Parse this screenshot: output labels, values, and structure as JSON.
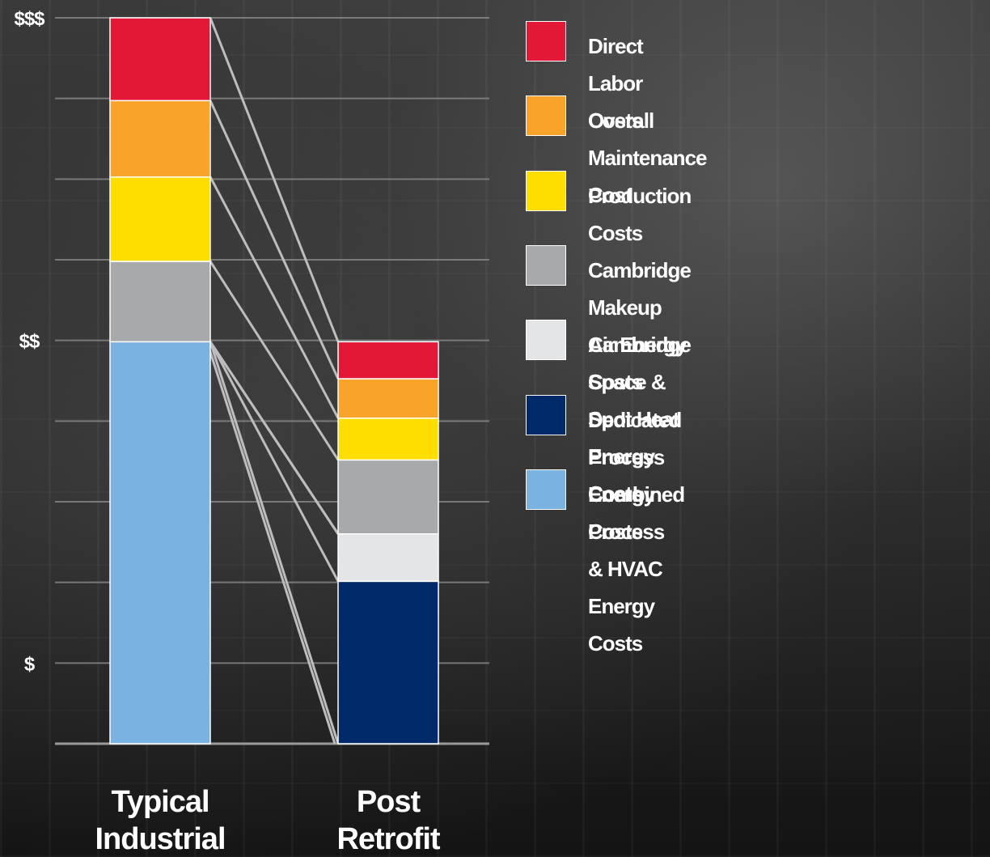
{
  "chart_data": {
    "type": "bar",
    "stacked": true,
    "categories": [
      "Typical\nIndustrial",
      "Post\nRetrofit"
    ],
    "y_tick_labels": [
      "$",
      "$$",
      "$$$"
    ],
    "series": [
      {
        "name": "Combined Process\n& HVAC Energy Costs",
        "color": "#7ab2e2",
        "values": [
          50,
          0
        ]
      },
      {
        "name": "Dedicated Process Energy Costs",
        "color": "#002a6a",
        "values": [
          0,
          20.2
        ]
      },
      {
        "name": "Cambridge Space & Spot Heat Energy Costs",
        "color": "#e4e5e7",
        "values": [
          0,
          5.9
        ]
      },
      {
        "name": "Cambridge Makeup Air Energy Costs",
        "color": "#a8a9ab",
        "values": [
          10,
          9.2
        ]
      },
      {
        "name": "Production Costs",
        "color": "#fedd00",
        "values": [
          10.5,
          5.2
        ]
      },
      {
        "name": "Overall Maintenance Cost",
        "color": "#f9a32b",
        "values": [
          9.5,
          4.9
        ]
      },
      {
        "name": "Direct Labor Costs",
        "color": "#e31837",
        "values": [
          10.3,
          4.6
        ]
      }
    ],
    "ylim": [
      0,
      90.3
    ],
    "grid": true,
    "legend_position": "right"
  },
  "legend_order": [
    6,
    5,
    4,
    3,
    2,
    1,
    0
  ]
}
